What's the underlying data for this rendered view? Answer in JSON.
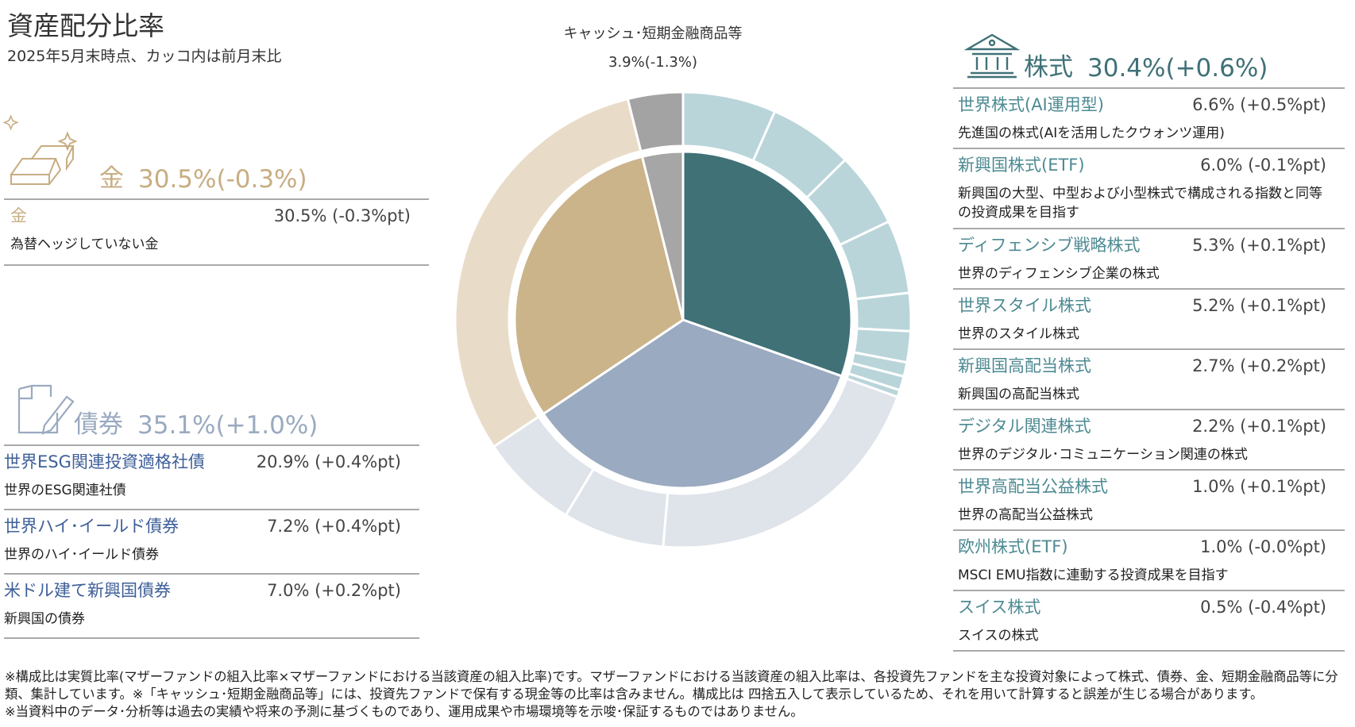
{
  "chart_data": {
    "type": "sunburst",
    "title": "資産配分比率",
    "subtitle": "2025年5月末時点、カッコ内は前月末比",
    "groups": [
      {
        "name": "株式",
        "value": 30.4,
        "value_label": "30.4%(+0.6%)",
        "color": "#3f7177",
        "outer_color": "#b9d5da",
        "items": [
          {
            "name": "世界株式(AI運用型)",
            "value": 6.6,
            "value_label": "6.6% (+0.5%pt)",
            "description": "先進国の株式(AIを活用したクウォンツ運用)"
          },
          {
            "name": "新興国株式(ETF)",
            "value": 6.0,
            "value_label": "6.0% (-0.1%pt)",
            "description": "新興国の大型、中型および小型株式で構成される指数と同等の投資成果を目指す"
          },
          {
            "name": "ディフェンシブ戦略株式",
            "value": 5.3,
            "value_label": "5.3% (+0.1%pt)",
            "description": "世界のディフェンシブ企業の株式"
          },
          {
            "name": "世界スタイル株式",
            "value": 5.2,
            "value_label": "5.2% (+0.1%pt)",
            "description": "世界のスタイル株式"
          },
          {
            "name": "新興国高配当株式",
            "value": 2.7,
            "value_label": "2.7% (+0.2%pt)",
            "description": "新興国の高配当株式"
          },
          {
            "name": "デジタル関連株式",
            "value": 2.2,
            "value_label": "2.2% (+0.1%pt)",
            "description": "世界のデジタル･コミュニケーション関連の株式"
          },
          {
            "name": "世界高配当公益株式",
            "value": 1.0,
            "value_label": "1.0% (+0.1%pt)",
            "description": "世界の高配当公益株式"
          },
          {
            "name": "欧州株式(ETF)",
            "value": 1.0,
            "value_label": "1.0% (-0.0%pt)",
            "description": "MSCI EMU指数に連動する投資成果を目指す"
          },
          {
            "name": "スイス株式",
            "value": 0.5,
            "value_label": "0.5% (-0.4%pt)",
            "description": "スイスの株式"
          }
        ]
      },
      {
        "name": "債券",
        "value": 35.1,
        "value_label": "35.1%(+1.0%)",
        "color": "#9aaac0",
        "outer_color": "#dfe3ea",
        "items": [
          {
            "name": "世界ESG関連投資適格社債",
            "value": 20.9,
            "value_label": "20.9% (+0.4%pt)",
            "description": "世界のESG関連社債"
          },
          {
            "name": "世界ハイ･イールド債券",
            "value": 7.2,
            "value_label": "7.2% (+0.4%pt)",
            "description": "世界のハイ･イールド債券"
          },
          {
            "name": "米ドル建て新興国債券",
            "value": 7.0,
            "value_label": "7.0% (+0.2%pt)",
            "description": "新興国の債券"
          }
        ]
      },
      {
        "name": "金",
        "value": 30.5,
        "value_label": "30.5%(-0.3%)",
        "color": "#cbb38a",
        "outer_color": "#e8dcc8",
        "items": [
          {
            "name": "金",
            "value": 30.5,
            "value_label": "30.5% (-0.3%pt)",
            "description": "為替ヘッジしていない金"
          }
        ]
      },
      {
        "name": "キャッシュ･短期金融商品等",
        "value": 3.9,
        "value_label": "3.9%(-1.3%)",
        "color": "#a6a6a6",
        "outer_color": "#a3a3a3",
        "items": []
      }
    ],
    "notes": [
      "※構成比は実質比率(マザーファンドの組入比率×マザーファンドにおける当該資産の組入比率)です。マザーファンドにおける当該資産の組入比率は、各投資先ファンドを主な投資対象によって株式、債券、金、短期金融商品等に分類、集計しています。※「キャッシュ･短期金融商品等」には、投資先ファンドで保有する現金等の比率は含みません。構成比は 四捨五入して表示しているため、それを用いて計算すると誤差が生じる場合があります。",
      "※当資料中のデータ･分析等は過去の実績や将来の予測に基づくものであり、運用成果や市場環境等を示唆･保証するものではありません。"
    ]
  }
}
